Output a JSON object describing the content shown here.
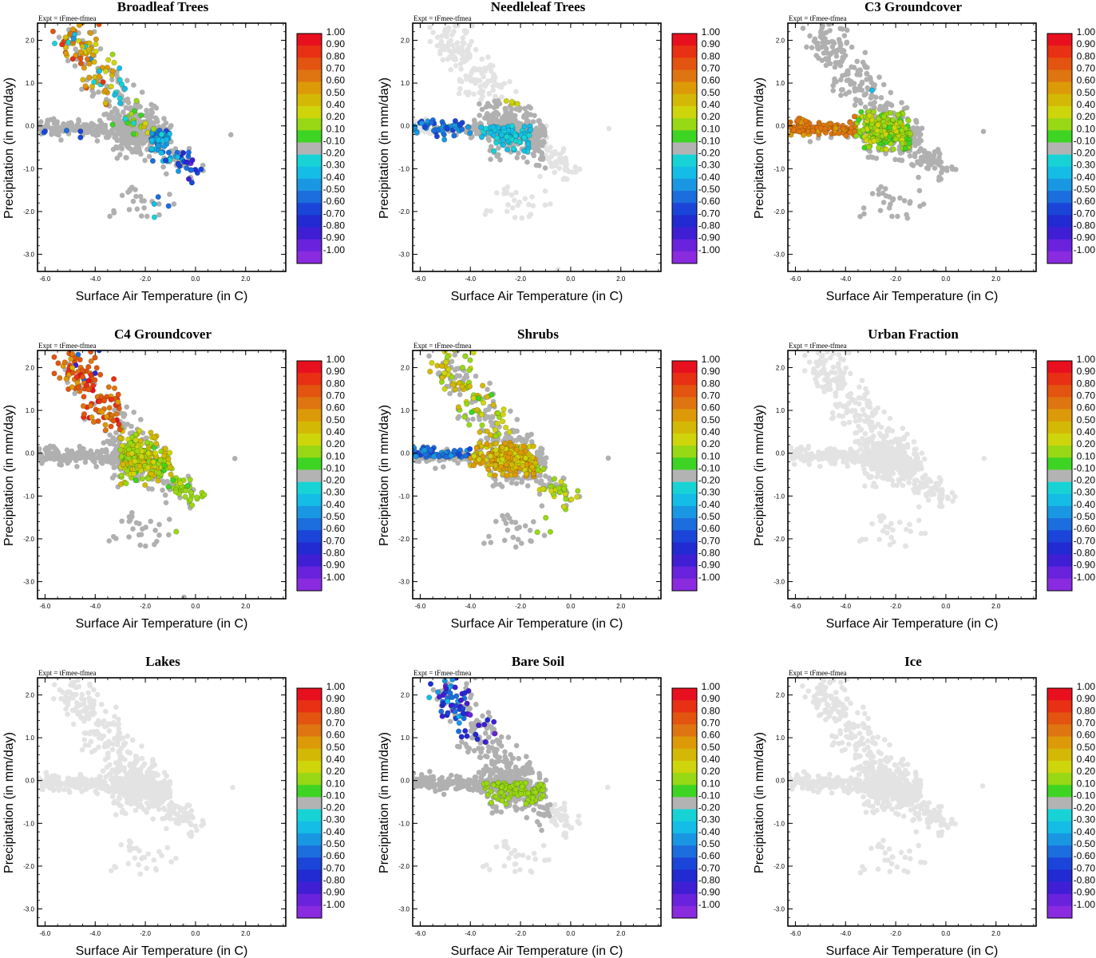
{
  "figure": {
    "expt_label": "Expt = tFmee-tfmea",
    "xlabel": "Surface Air Temperature (in C)",
    "ylabel": "Precipitation (in mm/day)",
    "xticks": [
      -6.0,
      -4.0,
      -2.0,
      0.0,
      2.0
    ],
    "yticks": [
      2.0,
      1.0,
      0.0,
      -1.0,
      -2.0,
      -3.0
    ],
    "xlim": [
      -6.3,
      3.6
    ],
    "ylim": [
      -3.4,
      2.4
    ],
    "colorbar": {
      "labels": [
        "1.00",
        "0.90",
        "0.80",
        "0.70",
        "0.60",
        "0.50",
        "0.40",
        "0.20",
        "0.10",
        "-0.10",
        "-0.20",
        "-0.30",
        "-0.40",
        "-0.50",
        "-0.60",
        "-0.70",
        "-0.80",
        "-0.90",
        "-1.00"
      ],
      "colors": [
        "#e8101e",
        "#e83014",
        "#e2540f",
        "#de7510",
        "#dd9a08",
        "#d4b806",
        "#cfd50b",
        "#98d814",
        "#3ed423",
        "#b3b3b3",
        "#18d3d6",
        "#14bde6",
        "#1a97e2",
        "#1c6ddd",
        "#1a45d8",
        "#222ad2",
        "#3f1ed4",
        "#6a22dc",
        "#8a2be0"
      ]
    },
    "background_color": "#e3e3e3",
    "neutral_color": "#b0b0b0"
  },
  "chart_data": [
    {
      "type": "scatter",
      "title": "Broadleaf Trees",
      "profile": "broadleaf",
      "seed": 11
    },
    {
      "type": "scatter",
      "title": "Needleleaf Trees",
      "profile": "needleleaf",
      "seed": 23
    },
    {
      "type": "scatter",
      "title": "C3 Groundcover",
      "profile": "c3",
      "seed": 37
    },
    {
      "type": "scatter",
      "title": "C4 Groundcover",
      "profile": "c4",
      "seed": 41
    },
    {
      "type": "scatter",
      "title": "Shrubs",
      "profile": "shrubs",
      "seed": 53
    },
    {
      "type": "scatter",
      "title": "Urban Fraction",
      "profile": "none",
      "seed": 67
    },
    {
      "type": "scatter",
      "title": "Lakes",
      "profile": "none",
      "seed": 71
    },
    {
      "type": "scatter",
      "title": "Bare Soil",
      "profile": "baresoil",
      "seed": 83
    },
    {
      "type": "scatter",
      "title": "Ice",
      "profile": "none",
      "seed": 97
    }
  ]
}
